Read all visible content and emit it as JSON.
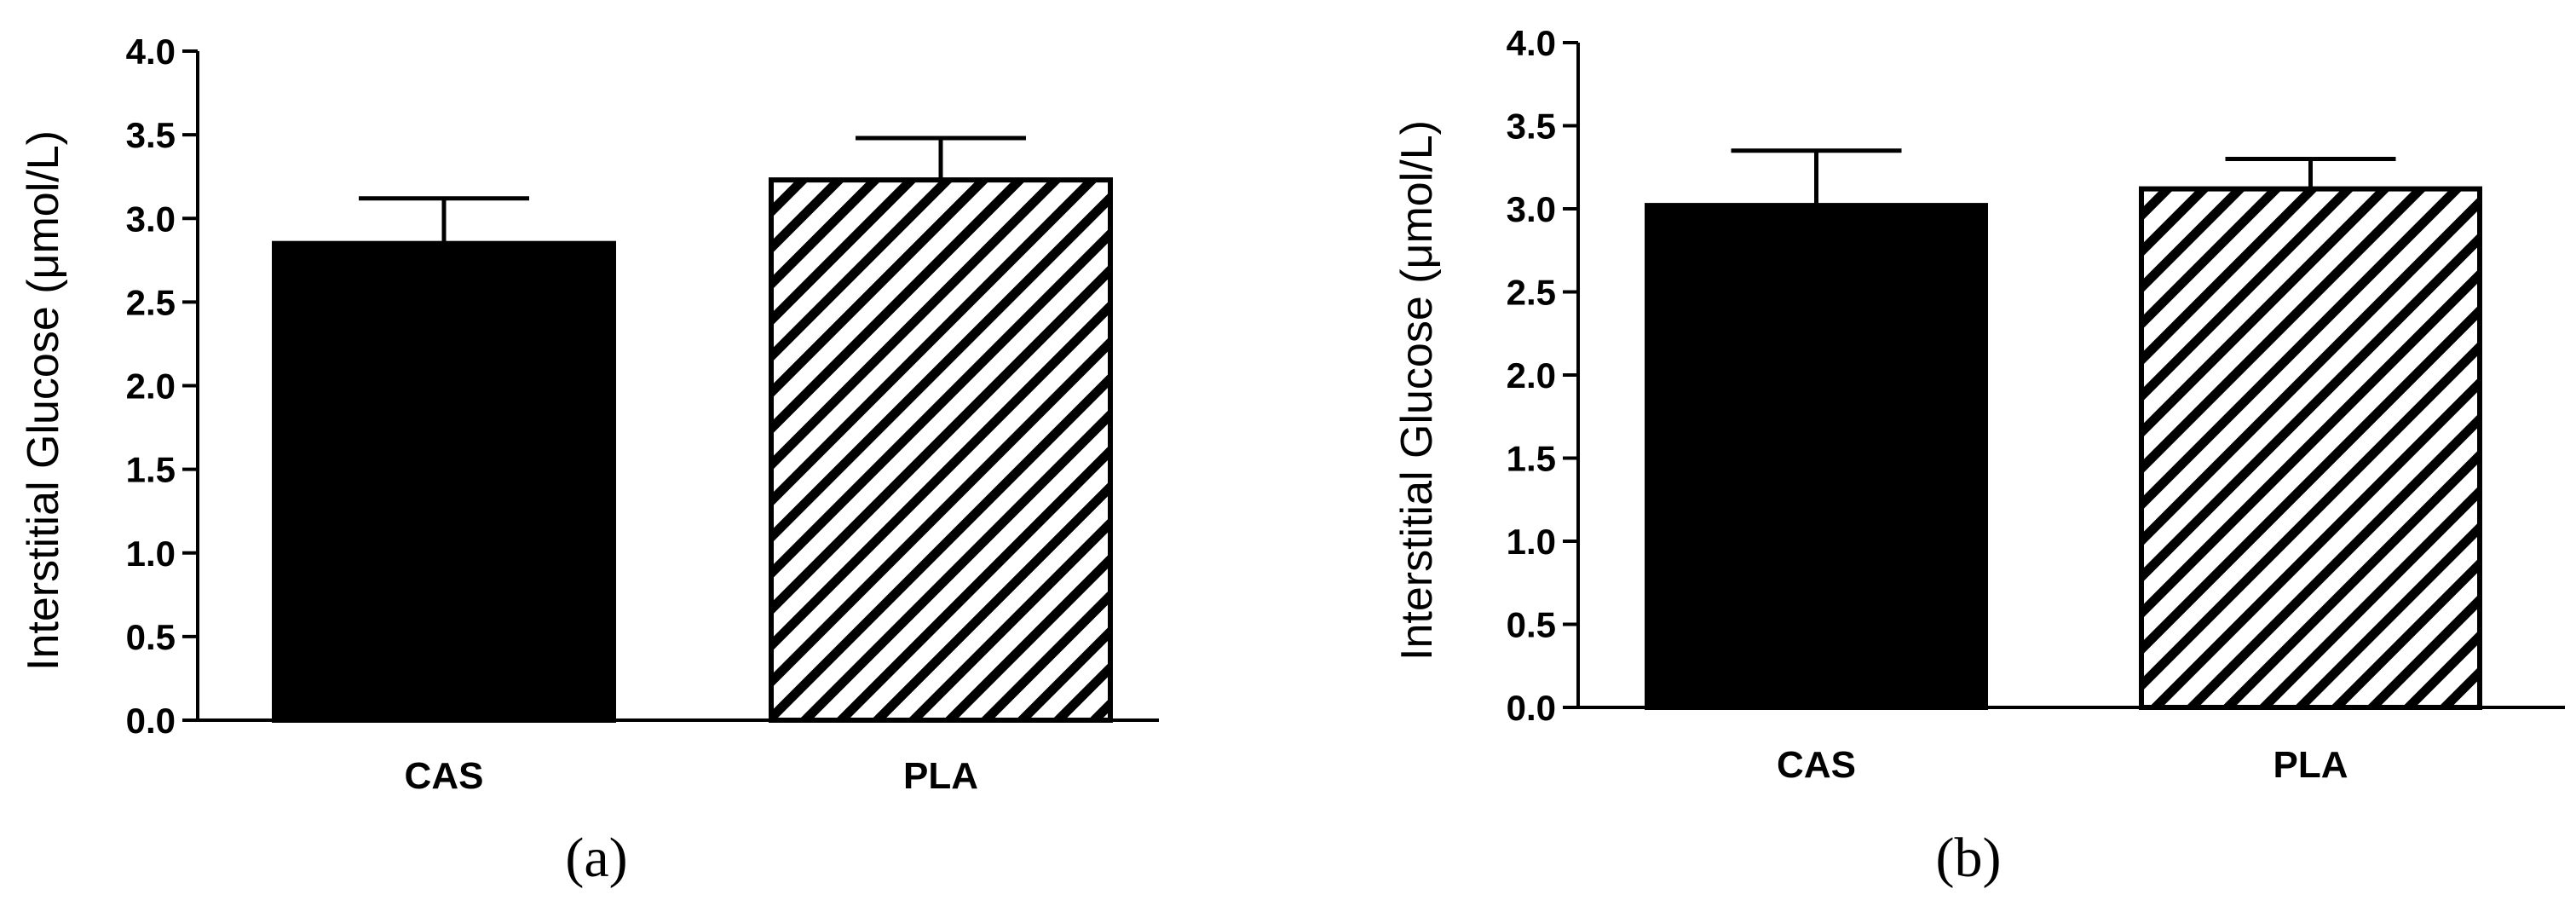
{
  "chart_data": [
    {
      "type": "bar",
      "panel_label": "(a)",
      "ylabel": "Interstitial Glucose (μmol/L)",
      "xlabel": "",
      "ylim": [
        0,
        4.0
      ],
      "yticks": [
        "0.0",
        "0.5",
        "1.0",
        "1.5",
        "2.0",
        "2.5",
        "3.0",
        "3.5",
        "4.0"
      ],
      "categories": [
        "CAS",
        "PLA"
      ],
      "values": [
        2.85,
        3.23
      ],
      "error_upper": [
        0.27,
        0.25
      ],
      "bar_styles": [
        "solid-black",
        "diagonal-hatch"
      ],
      "grid": false
    },
    {
      "type": "bar",
      "panel_label": "(b)",
      "ylabel": "Interstitial Glucose (μmol/L)",
      "xlabel": "",
      "ylim": [
        0,
        4.0
      ],
      "yticks": [
        "0.0",
        "0.5",
        "1.0",
        "1.5",
        "2.0",
        "2.5",
        "3.0",
        "3.5",
        "4.0"
      ],
      "categories": [
        "CAS",
        "PLA"
      ],
      "values": [
        3.02,
        3.12
      ],
      "error_upper": [
        0.33,
        0.18
      ],
      "bar_styles": [
        "solid-black",
        "diagonal-hatch"
      ],
      "grid": false
    }
  ]
}
